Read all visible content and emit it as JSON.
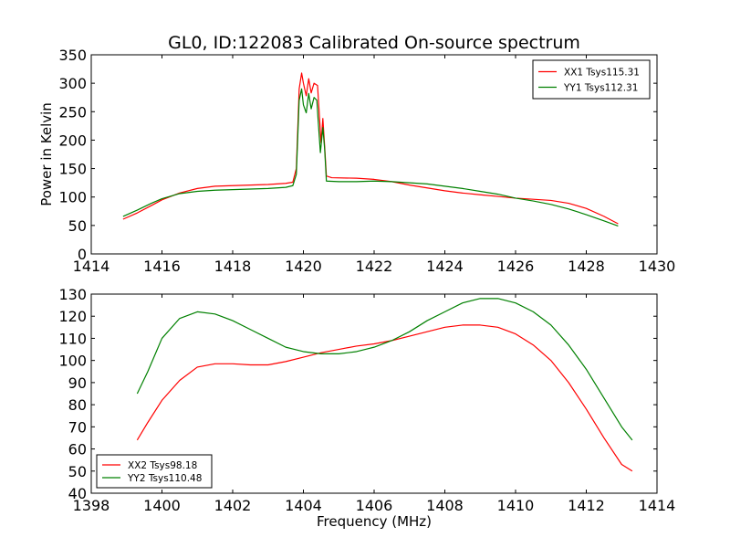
{
  "chart_data": [
    {
      "type": "line",
      "title": "GL0, ID:122083 Calibrated On-source spectrum",
      "xlabel": "",
      "ylabel": "Power in Kelvin",
      "xlim": [
        1414,
        1430
      ],
      "ylim": [
        0,
        350
      ],
      "xticks": [
        "1414",
        "1416",
        "1418",
        "1420",
        "1422",
        "1424",
        "1426",
        "1428",
        "1430"
      ],
      "yticks": [
        "0",
        "50",
        "100",
        "150",
        "200",
        "250",
        "300",
        "350"
      ],
      "grid": false,
      "legend_position": "top-right",
      "series": [
        {
          "name": "XX1 Tsys115.31",
          "color": "#ff0000",
          "points": [
            [
              1414.9,
              61
            ],
            [
              1415.3,
              72
            ],
            [
              1415.7,
              85
            ],
            [
              1416.0,
              95
            ],
            [
              1416.5,
              107
            ],
            [
              1417.0,
              115
            ],
            [
              1417.5,
              119
            ],
            [
              1418.0,
              120
            ],
            [
              1418.5,
              121
            ],
            [
              1419.0,
              122
            ],
            [
              1419.5,
              124
            ],
            [
              1419.7,
              126
            ],
            [
              1419.8,
              150
            ],
            [
              1419.88,
              290
            ],
            [
              1419.95,
              318
            ],
            [
              1420.0,
              300
            ],
            [
              1420.08,
              278
            ],
            [
              1420.15,
              308
            ],
            [
              1420.22,
              283
            ],
            [
              1420.3,
              300
            ],
            [
              1420.4,
              296
            ],
            [
              1420.45,
              245
            ],
            [
              1420.5,
              195
            ],
            [
              1420.55,
              238
            ],
            [
              1420.6,
              190
            ],
            [
              1420.65,
              137
            ],
            [
              1420.8,
              134
            ],
            [
              1421.5,
              133
            ],
            [
              1422.0,
              131
            ],
            [
              1422.5,
              127
            ],
            [
              1423.0,
              121
            ],
            [
              1423.5,
              116
            ],
            [
              1424.0,
              111
            ],
            [
              1424.5,
              107
            ],
            [
              1425.0,
              104
            ],
            [
              1425.5,
              101
            ],
            [
              1426.0,
              98
            ],
            [
              1426.5,
              96
            ],
            [
              1427.0,
              94
            ],
            [
              1427.5,
              89
            ],
            [
              1428.0,
              80
            ],
            [
              1428.5,
              66
            ],
            [
              1428.9,
              53
            ]
          ]
        },
        {
          "name": "YY1 Tsys112.31",
          "color": "#008000",
          "points": [
            [
              1414.9,
              66
            ],
            [
              1415.3,
              77
            ],
            [
              1415.7,
              89
            ],
            [
              1416.0,
              97
            ],
            [
              1416.5,
              106
            ],
            [
              1417.0,
              110
            ],
            [
              1417.5,
              112
            ],
            [
              1418.0,
              113
            ],
            [
              1418.5,
              114
            ],
            [
              1419.0,
              115
            ],
            [
              1419.5,
              117
            ],
            [
              1419.7,
              120
            ],
            [
              1419.8,
              140
            ],
            [
              1419.88,
              270
            ],
            [
              1419.95,
              290
            ],
            [
              1420.0,
              262
            ],
            [
              1420.08,
              248
            ],
            [
              1420.15,
              282
            ],
            [
              1420.22,
              255
            ],
            [
              1420.3,
              275
            ],
            [
              1420.38,
              270
            ],
            [
              1420.42,
              232
            ],
            [
              1420.48,
              178
            ],
            [
              1420.55,
              222
            ],
            [
              1420.6,
              185
            ],
            [
              1420.65,
              128
            ],
            [
              1421.0,
              127
            ],
            [
              1421.5,
              127
            ],
            [
              1422.0,
              128
            ],
            [
              1422.5,
              127
            ],
            [
              1423.0,
              125
            ],
            [
              1423.5,
              123
            ],
            [
              1424.0,
              119
            ],
            [
              1424.5,
              115
            ],
            [
              1425.0,
              110
            ],
            [
              1425.5,
              105
            ],
            [
              1426.0,
              98
            ],
            [
              1426.5,
              93
            ],
            [
              1427.0,
              87
            ],
            [
              1427.5,
              79
            ],
            [
              1428.0,
              69
            ],
            [
              1428.5,
              58
            ],
            [
              1428.9,
              49
            ]
          ]
        }
      ]
    },
    {
      "type": "line",
      "title": "",
      "xlabel": "Frequency (MHz)",
      "ylabel": "",
      "xlim": [
        1398,
        1414
      ],
      "ylim": [
        40,
        130
      ],
      "xticks": [
        "1398",
        "1400",
        "1402",
        "1404",
        "1406",
        "1408",
        "1410",
        "1412",
        "1414"
      ],
      "yticks": [
        "40",
        "50",
        "60",
        "70",
        "80",
        "90",
        "100",
        "110",
        "120",
        "130"
      ],
      "grid": false,
      "legend_position": "bottom-left",
      "series": [
        {
          "name": "XX2 Tsys98.18",
          "color": "#ff0000",
          "points": [
            [
              1399.3,
              64
            ],
            [
              1399.6,
              72
            ],
            [
              1400.0,
              82
            ],
            [
              1400.5,
              91
            ],
            [
              1401.0,
              97
            ],
            [
              1401.5,
              98.5
            ],
            [
              1402.0,
              98.5
            ],
            [
              1402.5,
              98
            ],
            [
              1403.0,
              98
            ],
            [
              1403.5,
              99.5
            ],
            [
              1404.0,
              101.5
            ],
            [
              1404.5,
              103.5
            ],
            [
              1405.0,
              105
            ],
            [
              1405.5,
              106.5
            ],
            [
              1406.0,
              107.5
            ],
            [
              1406.5,
              109
            ],
            [
              1407.0,
              111
            ],
            [
              1407.5,
              113
            ],
            [
              1408.0,
              115
            ],
            [
              1408.5,
              116
            ],
            [
              1409.0,
              116
            ],
            [
              1409.5,
              115
            ],
            [
              1410.0,
              112
            ],
            [
              1410.5,
              107
            ],
            [
              1411.0,
              100
            ],
            [
              1411.5,
              90
            ],
            [
              1412.0,
              78
            ],
            [
              1412.5,
              65
            ],
            [
              1413.0,
              53
            ],
            [
              1413.3,
              50
            ]
          ]
        },
        {
          "name": "YY2 Tsys110.48",
          "color": "#008000",
          "points": [
            [
              1399.3,
              85
            ],
            [
              1399.6,
              95
            ],
            [
              1400.0,
              110
            ],
            [
              1400.5,
              119
            ],
            [
              1401.0,
              122
            ],
            [
              1401.5,
              121
            ],
            [
              1402.0,
              118
            ],
            [
              1402.5,
              114
            ],
            [
              1403.0,
              110
            ],
            [
              1403.5,
              106
            ],
            [
              1404.0,
              104
            ],
            [
              1404.5,
              103
            ],
            [
              1405.0,
              103
            ],
            [
              1405.5,
              104
            ],
            [
              1406.0,
              106
            ],
            [
              1406.5,
              109
            ],
            [
              1407.0,
              113
            ],
            [
              1407.5,
              118
            ],
            [
              1408.0,
              122
            ],
            [
              1408.5,
              126
            ],
            [
              1409.0,
              128
            ],
            [
              1409.5,
              128
            ],
            [
              1410.0,
              126
            ],
            [
              1410.5,
              122
            ],
            [
              1411.0,
              116
            ],
            [
              1411.5,
              107
            ],
            [
              1412.0,
              96
            ],
            [
              1412.5,
              83
            ],
            [
              1413.0,
              70
            ],
            [
              1413.3,
              64
            ]
          ]
        }
      ]
    }
  ]
}
